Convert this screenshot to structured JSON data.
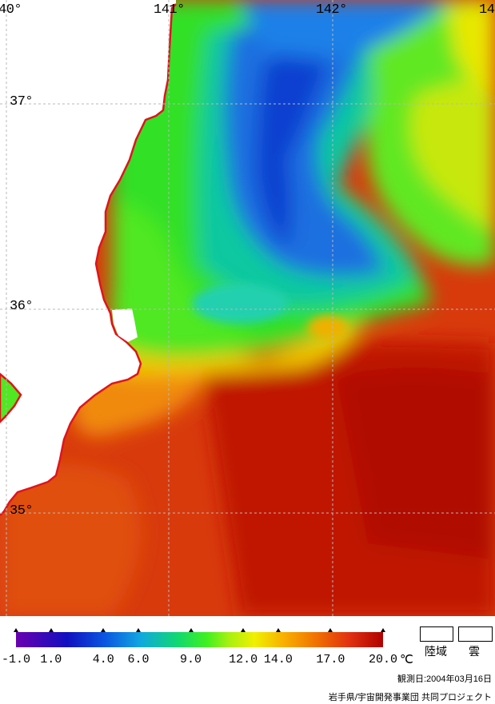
{
  "map": {
    "lon_labels": [
      {
        "text": "40°"
      },
      {
        "text": "141°"
      },
      {
        "text": "142°"
      },
      {
        "text": "14"
      }
    ],
    "lat_labels": [
      {
        "text": "37°"
      },
      {
        "text": "36°"
      },
      {
        "text": "35°"
      }
    ],
    "colors": {
      "land": "#ffffff",
      "coastline": "#e0141c",
      "grid": "#aaaaaa"
    }
  },
  "legend": {
    "ticks": [
      "-1.0",
      "1.0",
      "4.0",
      "6.0",
      "9.0",
      "12.0",
      "14.0",
      "17.0",
      "20.0"
    ],
    "tick_values": [
      -1.0,
      1.0,
      4.0,
      6.0,
      9.0,
      12.0,
      14.0,
      17.0,
      20.0
    ],
    "range": [
      -1.0,
      20.0
    ],
    "unit": "℃",
    "land_label": "陸域",
    "cloud_label": "雲"
  },
  "footer": {
    "date": "観測日:2004年03月16日",
    "credit": "岩手県/宇宙開発事業団 共同プロジェクト"
  }
}
